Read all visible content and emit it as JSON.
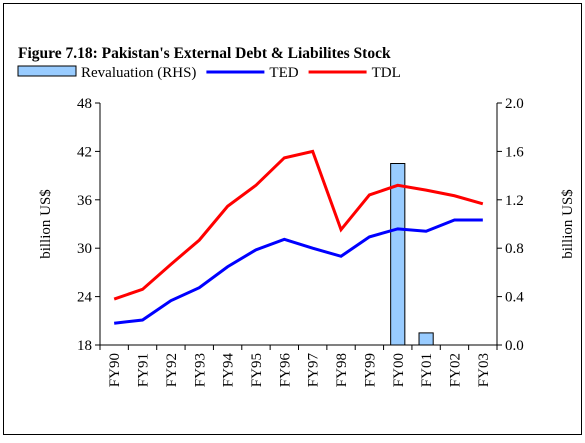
{
  "chart_data": {
    "type": "bar-line",
    "title": "Figure 7.18: Pakistan's External Debt & Liabilites Stock",
    "ylabel": "billion US$",
    "y2label": "billion US$",
    "categories": [
      "FY90",
      "FY91",
      "FY92",
      "FY93",
      "FY94",
      "FY95",
      "FY96",
      "FY97",
      "FY98",
      "FY99",
      "FY00",
      "FY01",
      "FY02",
      "FY03"
    ],
    "series": [
      {
        "name": "Revaluation (RHS)",
        "kind": "bar",
        "axis": "y2",
        "color": "#99ccff",
        "values": [
          null,
          null,
          null,
          null,
          null,
          null,
          null,
          null,
          null,
          null,
          1.5,
          0.1,
          null,
          null
        ]
      },
      {
        "name": "TED",
        "kind": "line",
        "color": "#0000ff",
        "values": [
          20.7,
          21.1,
          23.5,
          25.1,
          27.7,
          29.8,
          31.1,
          30.0,
          29.0,
          31.4,
          32.4,
          32.1,
          33.5,
          33.5
        ]
      },
      {
        "name": "TDL",
        "kind": "line",
        "color": "#ff0000",
        "values": [
          23.7,
          24.9,
          28.0,
          31.0,
          35.2,
          37.8,
          41.2,
          42.0,
          32.3,
          36.6,
          37.8,
          37.2,
          36.5,
          35.5
        ]
      }
    ],
    "ylim": [
      18,
      48
    ],
    "yticks": [
      18,
      24,
      30,
      36,
      42,
      48
    ],
    "y2lim": [
      0,
      2
    ],
    "y2ticks": [
      {
        "value": 0,
        "label": "0.0"
      },
      0.4,
      0.8,
      1.2,
      1.6,
      {
        "value": 2,
        "label": "2.0"
      }
    ]
  }
}
